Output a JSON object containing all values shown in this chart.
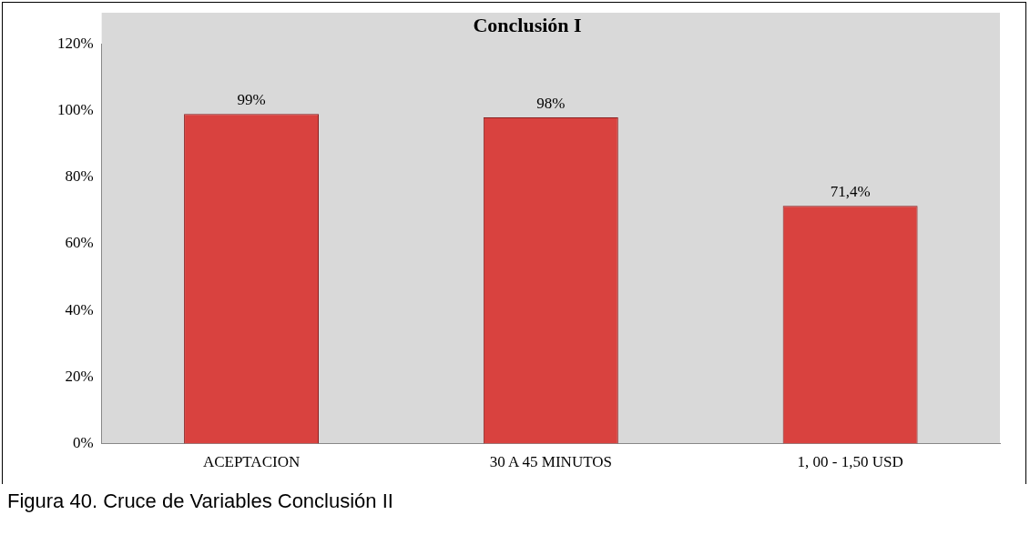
{
  "chart_data": {
    "type": "bar",
    "title": "Conclusión I",
    "categories": [
      "ACEPTACION",
      "30 A 45 MINUTOS",
      "1, 00 - 1,50 USD"
    ],
    "values": [
      99,
      98,
      71.4
    ],
    "color": "#d9423f",
    "value_labels": [
      "99%",
      "98%",
      "71,4%"
    ],
    "ylim": [
      0,
      120
    ],
    "yticks": [
      {
        "value": 0,
        "label": "0%"
      },
      {
        "value": 20,
        "label": "20%"
      },
      {
        "value": 40,
        "label": "40%"
      },
      {
        "value": 60,
        "label": "60%"
      },
      {
        "value": 80,
        "label": "80%"
      },
      {
        "value": 100,
        "label": "100%"
      },
      {
        "value": 120,
        "label": "120%"
      }
    ],
    "grid": false,
    "legend": false,
    "annotations": [
      "Figura 40. Cruce de Variables Conclusión II"
    ]
  }
}
